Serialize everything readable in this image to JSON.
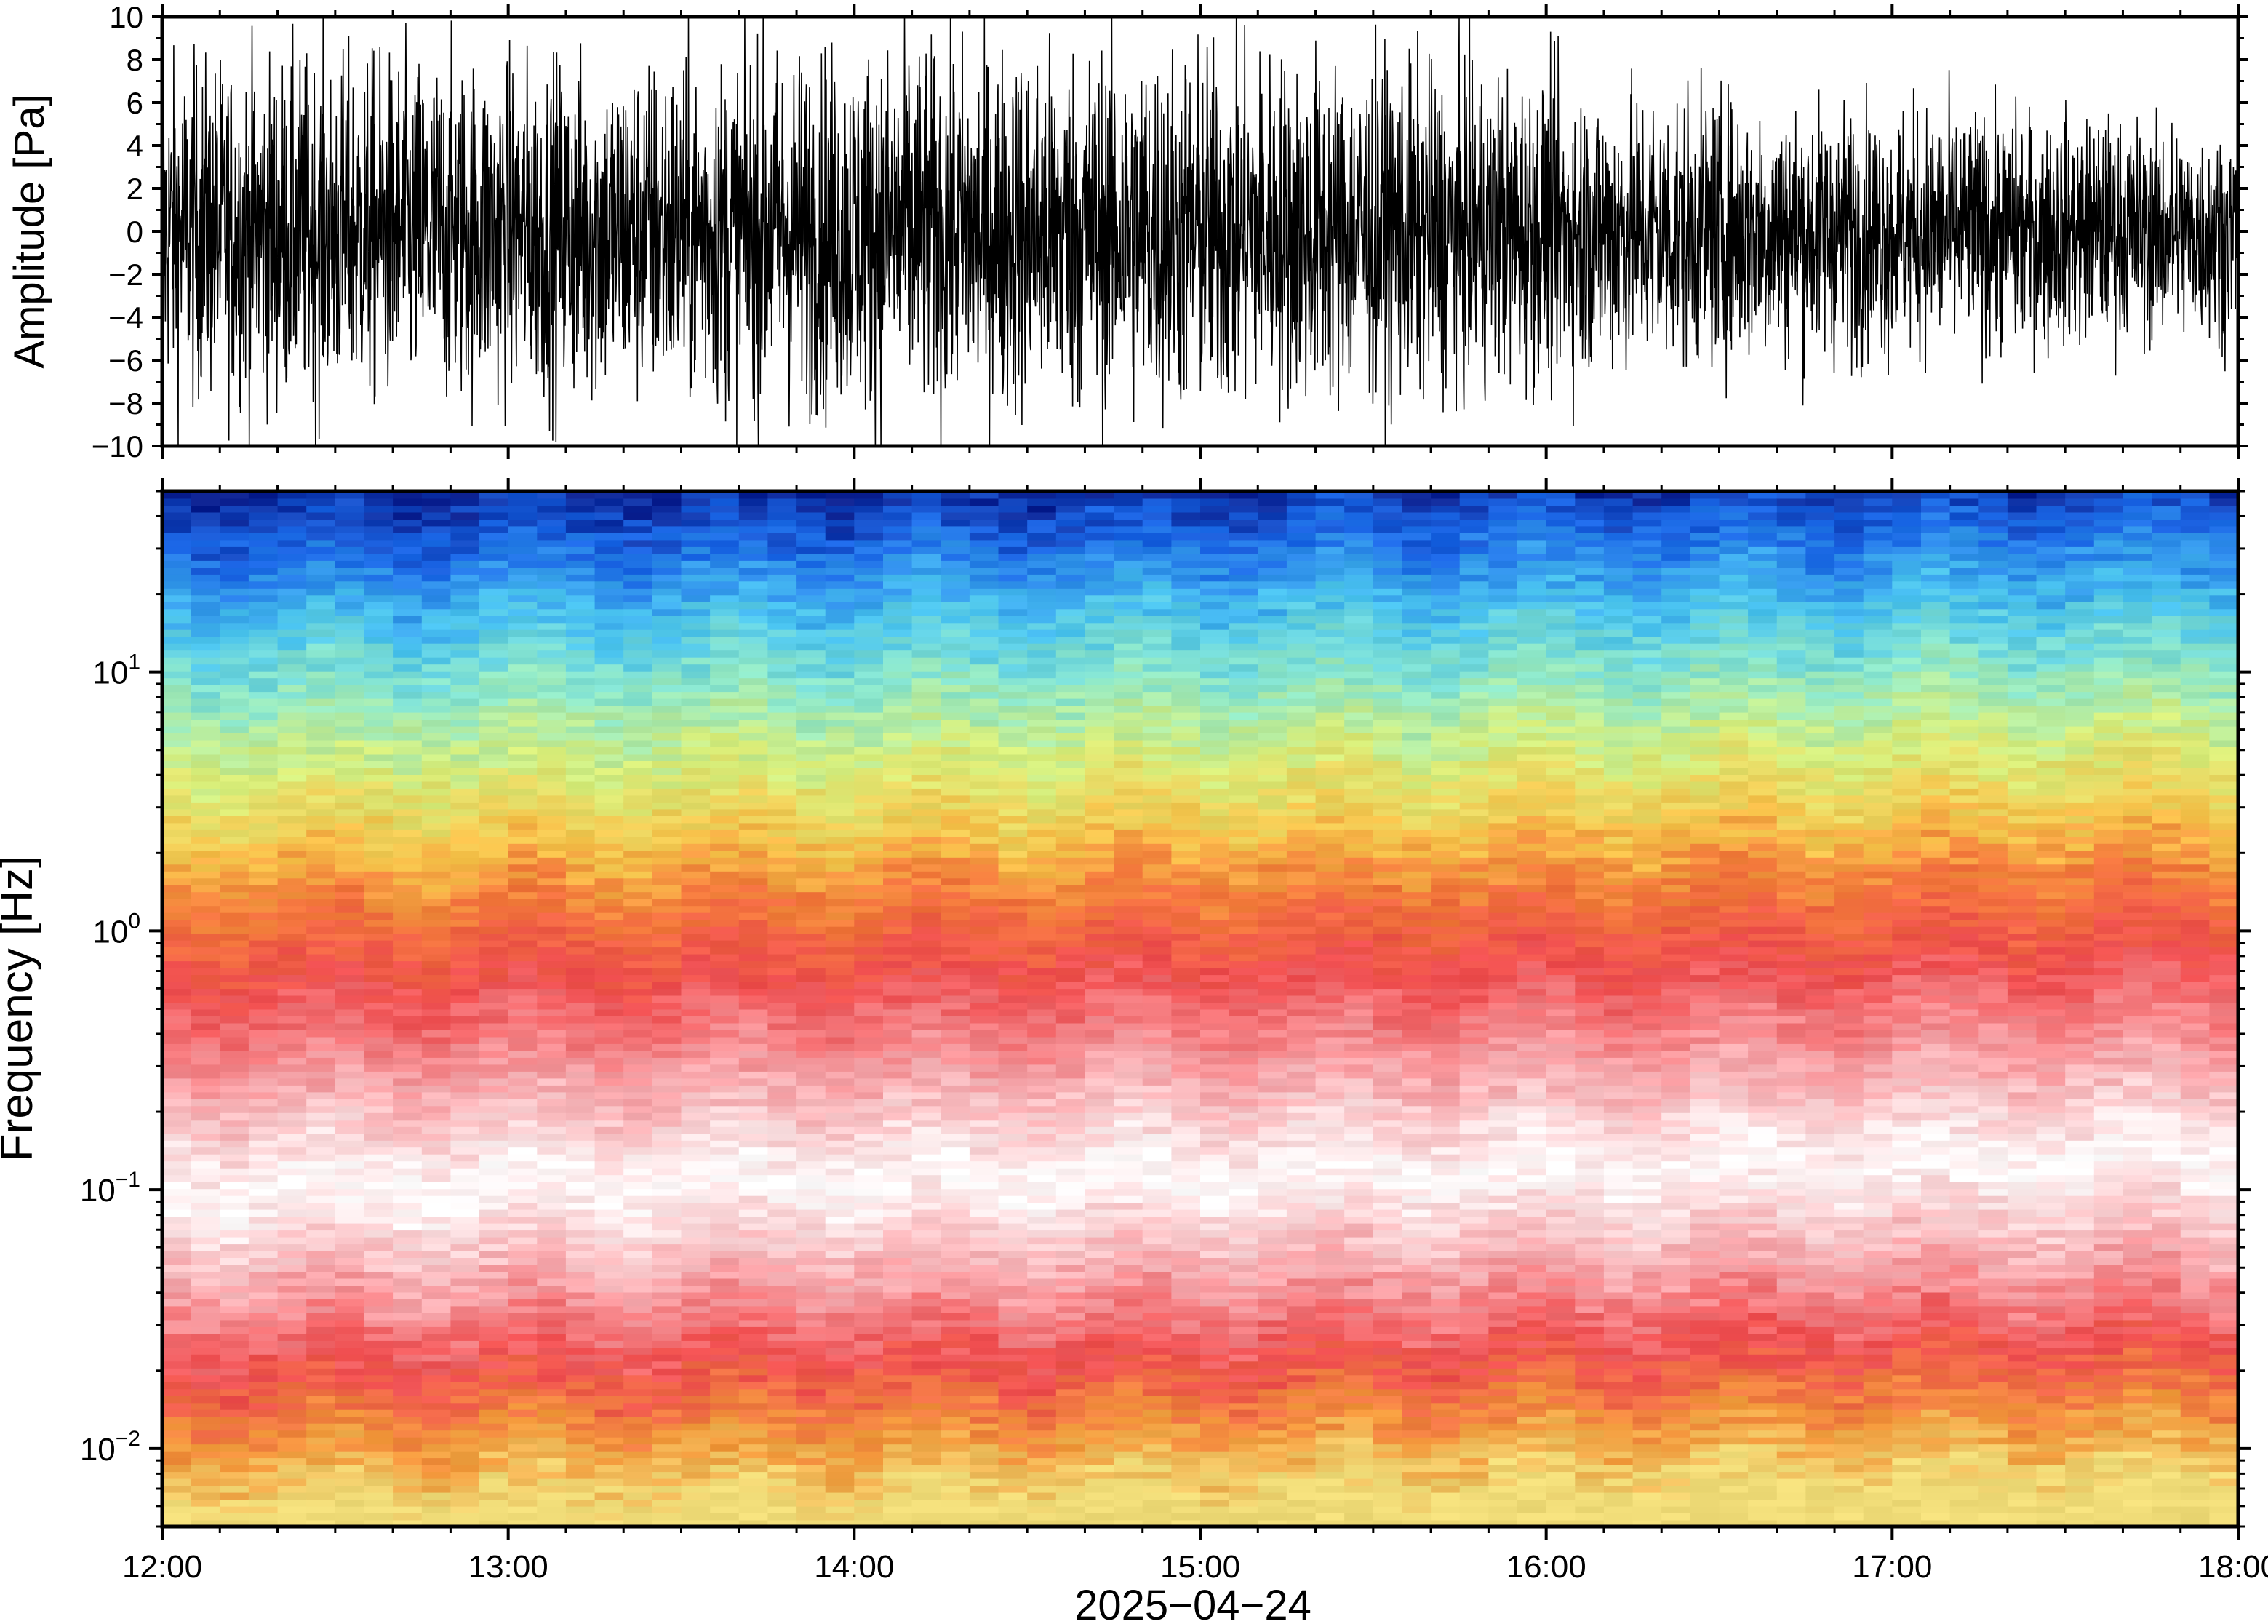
{
  "chart_data": [
    {
      "type": "line",
      "panel": "waveform",
      "ylabel": "Amplitude [Pa]",
      "xlim": [
        "12:00",
        "18:00"
      ],
      "ylim": [
        -10,
        10
      ],
      "y_ticks": [
        10,
        8,
        6,
        4,
        2,
        0,
        -2,
        -4,
        -6,
        -8,
        -10
      ],
      "y_tick_labels": [
        "10",
        "8",
        "6",
        "4",
        "2",
        "0",
        "−2",
        "−4",
        "−6",
        "−8",
        "−10"
      ],
      "series": [
        {
          "color": "#000000",
          "envelope_time_hours": [
            12.0,
            12.5,
            13.0,
            13.5,
            14.0,
            14.5,
            15.0,
            15.5,
            16.0,
            16.5,
            17.0,
            17.5,
            18.0
          ],
          "envelope_max": [
            9.0,
            9.5,
            9.0,
            9.5,
            10.0,
            10.0,
            10.0,
            9.0,
            8.0,
            7.0,
            6.5,
            6.0,
            5.5
          ],
          "envelope_min": [
            -9.0,
            -9.5,
            -9.5,
            -9.5,
            -10.0,
            -10.0,
            -10.0,
            -9.5,
            -8.5,
            -7.5,
            -7.0,
            -6.5,
            -6.0
          ]
        }
      ]
    },
    {
      "type": "heatmap",
      "panel": "spectrogram",
      "ylabel": "Frequency [Hz]",
      "xlabel": "2025−04−24",
      "yscale": "log",
      "ylim": [
        0.005,
        50
      ],
      "x_tick_labels": [
        "12:00",
        "13:00",
        "14:00",
        "15:00",
        "16:00",
        "17:00",
        "18:00"
      ],
      "y_ticks": [
        10,
        1,
        0.1,
        0.01
      ],
      "y_tick_labels": [
        {
          "base": "10",
          "exp": "1"
        },
        {
          "base": "10",
          "exp": "0"
        },
        {
          "base": "10",
          "exp": "−1"
        },
        {
          "base": "10",
          "exp": "−2"
        }
      ],
      "colormap": [
        "#0a1f8f",
        "#1a66e6",
        "#49c3ef",
        "#8fe8c8",
        "#d8ee7a",
        "#f7c24a",
        "#f2783a",
        "#ef4d4f",
        "#f7a3a8",
        "#ffffff"
      ],
      "dominant_color_by_frequency_hz": [
        {
          "f": 50,
          "color": "#0a1f8f"
        },
        {
          "f": 30,
          "color": "#1a66e6"
        },
        {
          "f": 15,
          "color": "#49c3ef"
        },
        {
          "f": 8,
          "color": "#8fe8c8"
        },
        {
          "f": 4,
          "color": "#d8ee7a"
        },
        {
          "f": 2,
          "color": "#f7c24a"
        },
        {
          "f": 1.2,
          "color": "#f2783a"
        },
        {
          "f": 0.6,
          "color": "#ef4d4f"
        },
        {
          "f": 0.25,
          "color": "#f7a3a8"
        },
        {
          "f": 0.1,
          "color": "#ffffff"
        },
        {
          "f": 0.04,
          "color": "#f7a3a8"
        },
        {
          "f": 0.02,
          "color": "#ef4d4f"
        },
        {
          "f": 0.01,
          "color": "#f2983a"
        },
        {
          "f": 0.006,
          "color": "#f0dc78"
        }
      ]
    }
  ]
}
